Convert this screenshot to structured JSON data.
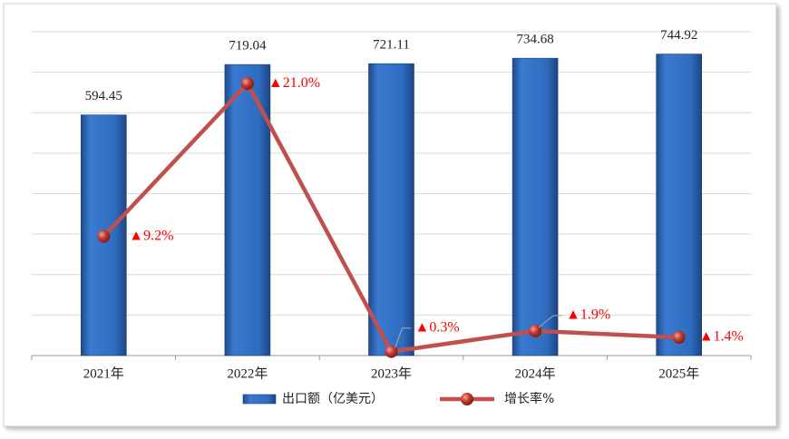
{
  "chart_data": {
    "type": "bar-line",
    "categories": [
      "2021年",
      "2022年",
      "2023年",
      "2024年",
      "2025年"
    ],
    "series": [
      {
        "name": "出口额（亿美元）",
        "type": "bar",
        "color": "#2e6bbd",
        "values": [
          594.45,
          719.04,
          721.11,
          734.68,
          744.92
        ]
      },
      {
        "name": "增长率%",
        "type": "line",
        "axis": "y2",
        "color": "#c0504d",
        "values": [
          9.2,
          21.0,
          0.3,
          1.9,
          1.4
        ],
        "value_labels": [
          "▲9.2%",
          "▲21.0%",
          "▲0.3%",
          "▲1.9%",
          "▲1.4%"
        ]
      }
    ],
    "ylim": [
      0,
      800
    ],
    "yticks": [
      0,
      100,
      200,
      300,
      400,
      500,
      600,
      700,
      800
    ],
    "y2lim": [
      0,
      25
    ],
    "grid": true,
    "tick_labels": false,
    "legend": "bottom"
  }
}
